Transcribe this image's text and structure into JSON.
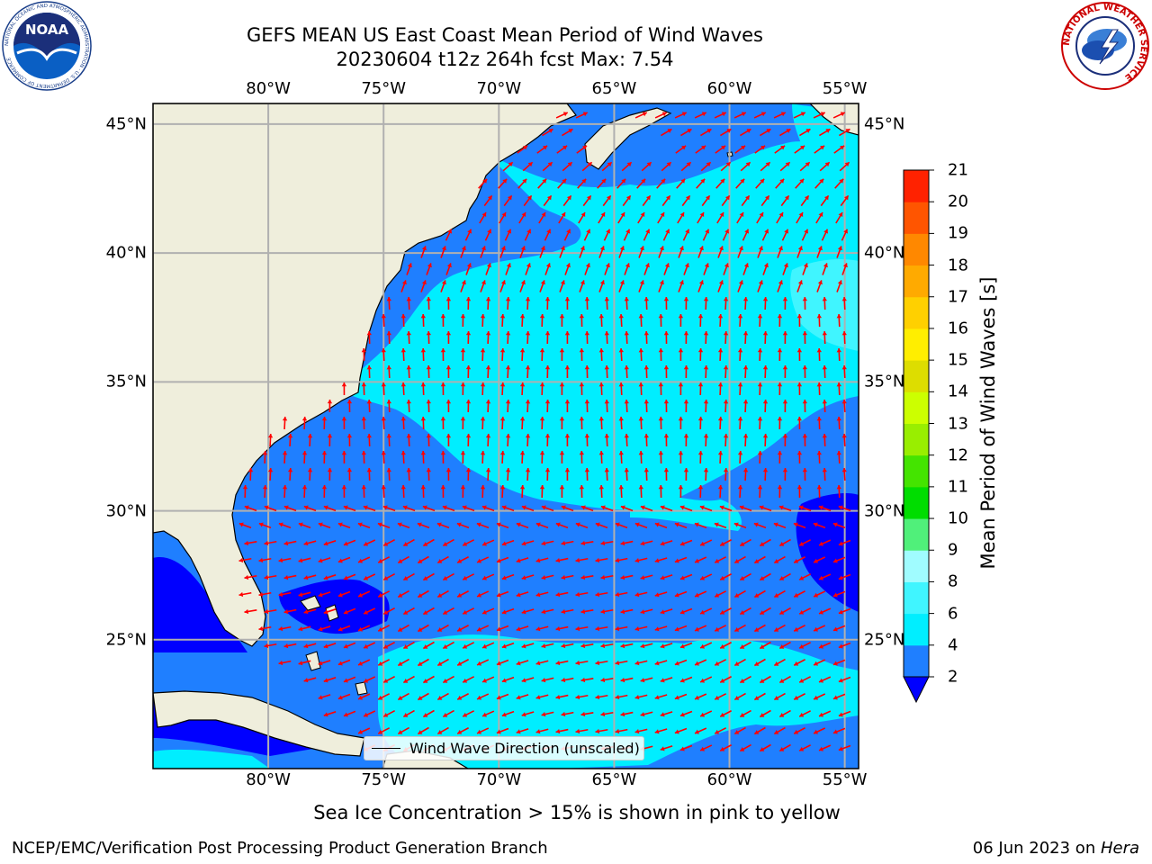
{
  "header": {
    "title": "GEFS MEAN US East Coast Mean Period of Wind Waves",
    "subtitle": "20230604 t12z 264h fcst   Max: 7.54"
  },
  "map": {
    "lon_labels": [
      "80°W",
      "75°W",
      "70°W",
      "65°W",
      "60°W",
      "55°W"
    ],
    "lon_values": [
      -80,
      -75,
      -70,
      -65,
      -60,
      -55
    ],
    "lat_labels": [
      "45°N",
      "40°N",
      "35°N",
      "30°N",
      "25°N"
    ],
    "lat_values": [
      45,
      40,
      35,
      30,
      25
    ],
    "extent": {
      "lon_min": -85,
      "lon_max": -54.4,
      "lat_min": 20,
      "lat_max": 45.8
    },
    "land_color": "#efeedc",
    "ocean_colors": {
      "band_2_4": "#1f7fff",
      "band_4_6": "#00eeff",
      "band_lt_2": "#0000ff"
    },
    "arrow_color": "#ff0000"
  },
  "colorbar": {
    "label": "Mean Period of Wind Waves [s]",
    "ticks": [
      "2",
      "4",
      "6",
      "8",
      "9",
      "10",
      "11",
      "12",
      "13",
      "14",
      "15",
      "16",
      "17",
      "18",
      "19",
      "20",
      "21"
    ],
    "colors": [
      "#1f7fff",
      "#00eeff",
      "#40f5ff",
      "#a0fcff",
      "#50f07a",
      "#00dd00",
      "#44e400",
      "#99ee00",
      "#ccff00",
      "#dddd00",
      "#ffee00",
      "#ffd000",
      "#ffaa00",
      "#ff8800",
      "#ff5500",
      "#ff2200"
    ],
    "under_color": "#0000ff"
  },
  "legend": {
    "label": "Wind Wave Direction (unscaled)"
  },
  "note": "Sea Ice Concentration > 15% is shown in pink to yellow",
  "footer": {
    "left": "NCEP/EMC/Verification Post Processing Product Generation Branch",
    "right_date": "06 Jun 2023 on ",
    "right_host": "Hera"
  },
  "logos": {
    "noaa": {
      "text": "NOAA",
      "ring_text": "NATIONAL OCEANIC AND ATMOSPHERIC ADMINISTRATION · U.S. DEPARTMENT OF COMMERCE"
    },
    "nws": {
      "ring_text": "NATIONAL WEATHER SERVICE"
    }
  }
}
